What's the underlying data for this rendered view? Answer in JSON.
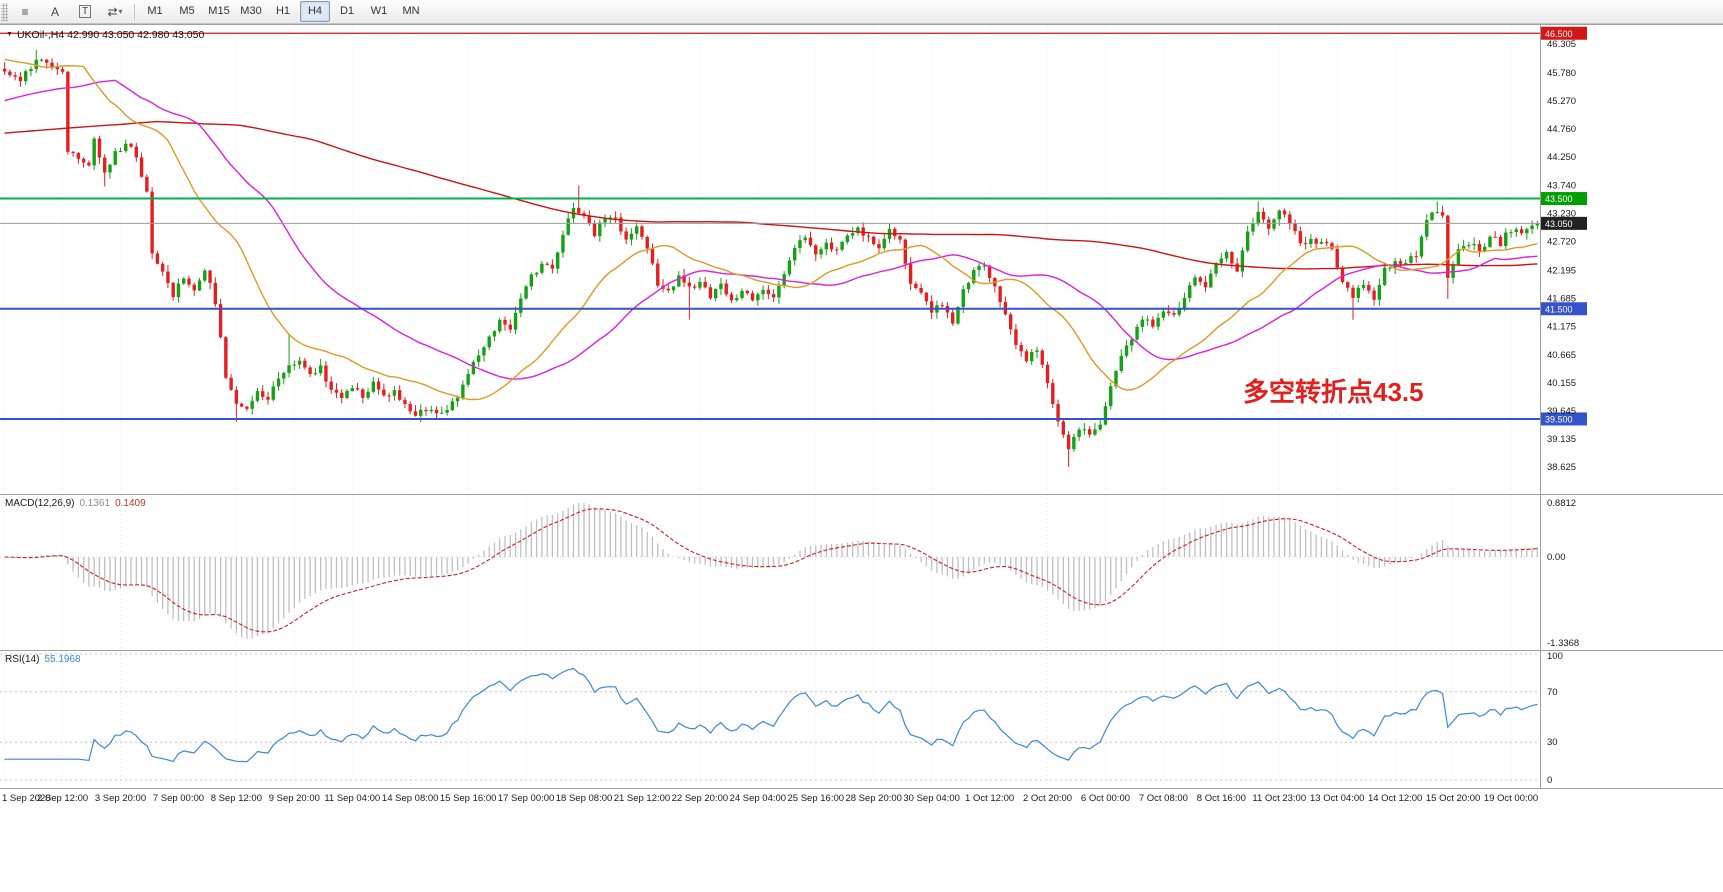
{
  "toolbar": {
    "icons": [
      {
        "name": "indicator-list-icon",
        "glyph": "≡"
      },
      {
        "name": "cursor-tool-icon",
        "glyph": "A"
      },
      {
        "name": "text-tool-icon",
        "glyph": "T",
        "boxed": true
      },
      {
        "name": "cycle-template-icon",
        "glyph": "⇄",
        "dropdown": true
      }
    ],
    "timeframes": [
      {
        "label": "M1",
        "active": false
      },
      {
        "label": "M5",
        "active": false
      },
      {
        "label": "M15",
        "active": false
      },
      {
        "label": "M30",
        "active": false
      },
      {
        "label": "H1",
        "active": false
      },
      {
        "label": "H4",
        "active": true
      },
      {
        "label": "D1",
        "active": false
      },
      {
        "label": "W1",
        "active": false
      },
      {
        "label": "MN",
        "active": false
      }
    ]
  },
  "overlays": {
    "collapse_glyph": "▼",
    "title": "UKOil-,H4  42.990 43.050 42.980 43.050",
    "annotation": "多空转折点43.5"
  },
  "chart_data": {
    "type": "candlestick",
    "symbol": "UKOil-",
    "timeframe": "H4",
    "ohlc_current": {
      "open": "42.990",
      "high": "43.050",
      "low": "42.980",
      "close": "43.050"
    },
    "colors": {
      "up": "#16a016",
      "down": "#e32020",
      "grid": "#e9e9e9",
      "separator": "#a0a0a0",
      "macd_bar": "#bfbfbf",
      "macd_signal": "#d02020",
      "rsi_line": "#3b87d9"
    },
    "y_axis_ticks": [
      "46.305",
      "45.780",
      "45.270",
      "44.760",
      "44.250",
      "43.740",
      "43.230",
      "42.720",
      "42.195",
      "41.685",
      "41.175",
      "40.665",
      "40.155",
      "39.645",
      "39.135",
      "38.625"
    ],
    "x_axis_labels": [
      "1 Sep 2020",
      "2 Sep 12:00",
      "3 Sep 20:00",
      "7 Sep 00:00",
      "8 Sep 12:00",
      "9 Sep 20:00",
      "11 Sep 04:00",
      "14 Sep 08:00",
      "15 Sep 16:00",
      "17 Sep 00:00",
      "18 Sep 08:00",
      "21 Sep 12:00",
      "22 Sep 20:00",
      "24 Sep 04:00",
      "25 Sep 16:00",
      "28 Sep 20:00",
      "30 Sep 04:00",
      "1 Oct 12:00",
      "2 Oct 20:00",
      "6 Oct 00:00",
      "7 Oct 08:00",
      "8 Oct 16:00",
      "11 Oct 23:00",
      "13 Oct 04:00",
      "14 Oct 12:00",
      "15 Oct 20:00",
      "19 Oct 00:00"
    ],
    "levels": [
      {
        "price": 46.5,
        "label": "46.500",
        "color": "#d51616",
        "line_color": "#d51616",
        "width": 1.3,
        "name": "resistance-line-46-5"
      },
      {
        "price": 43.5,
        "label": "43.500",
        "color": "#00a000",
        "line_color": "#00b050",
        "width": 2,
        "name": "pivot-line-43-5"
      },
      {
        "price": 43.05,
        "label": "43.050",
        "color": "#222222",
        "line_color": "#9b9b9b",
        "width": 1,
        "name": "current-price-line"
      },
      {
        "price": 41.5,
        "label": "41.500",
        "color": "#3452cc",
        "line_color": "#3452cc",
        "width": 2,
        "name": "support-line-41-5"
      },
      {
        "price": 39.5,
        "label": "39.500",
        "color": "#3452cc",
        "line_color": "#3452cc",
        "width": 2,
        "name": "support-line-39-5"
      }
    ],
    "candle_count": 292,
    "close_waypoints": [
      [
        0,
        45.85
      ],
      [
        3,
        45.65
      ],
      [
        6,
        46.0
      ],
      [
        9,
        45.9
      ],
      [
        11,
        45.75
      ],
      [
        12,
        44.4
      ],
      [
        14,
        44.25
      ],
      [
        16,
        44.1
      ],
      [
        17,
        44.55
      ],
      [
        19,
        43.95
      ],
      [
        21,
        44.3
      ],
      [
        23,
        44.5
      ],
      [
        25,
        44.3
      ],
      [
        27,
        43.6
      ],
      [
        28,
        42.45
      ],
      [
        30,
        42.2
      ],
      [
        32,
        41.7
      ],
      [
        34,
        42.1
      ],
      [
        36,
        41.85
      ],
      [
        38,
        42.25
      ],
      [
        40,
        41.6
      ],
      [
        42,
        40.3
      ],
      [
        44,
        39.75
      ],
      [
        46,
        39.65
      ],
      [
        48,
        40.0
      ],
      [
        50,
        39.85
      ],
      [
        52,
        40.25
      ],
      [
        54,
        40.45
      ],
      [
        56,
        40.55
      ],
      [
        58,
        40.3
      ],
      [
        60,
        40.45
      ],
      [
        62,
        40.0
      ],
      [
        64,
        39.85
      ],
      [
        66,
        40.1
      ],
      [
        68,
        39.9
      ],
      [
        70,
        40.15
      ],
      [
        72,
        39.9
      ],
      [
        74,
        40.05
      ],
      [
        76,
        39.75
      ],
      [
        78,
        39.55
      ],
      [
        80,
        39.7
      ],
      [
        82,
        39.6
      ],
      [
        84,
        39.65
      ],
      [
        86,
        39.9
      ],
      [
        88,
        40.3
      ],
      [
        90,
        40.65
      ],
      [
        92,
        41.0
      ],
      [
        94,
        41.3
      ],
      [
        96,
        41.15
      ],
      [
        98,
        41.7
      ],
      [
        100,
        42.1
      ],
      [
        102,
        42.3
      ],
      [
        104,
        42.2
      ],
      [
        106,
        42.9
      ],
      [
        108,
        43.3
      ],
      [
        110,
        43.15
      ],
      [
        112,
        42.85
      ],
      [
        114,
        43.2
      ],
      [
        116,
        43.1
      ],
      [
        118,
        42.75
      ],
      [
        120,
        43.05
      ],
      [
        122,
        42.6
      ],
      [
        124,
        41.95
      ],
      [
        126,
        41.8
      ],
      [
        128,
        42.1
      ],
      [
        130,
        41.85
      ],
      [
        132,
        41.95
      ],
      [
        134,
        41.75
      ],
      [
        136,
        41.9
      ],
      [
        138,
        41.65
      ],
      [
        140,
        41.8
      ],
      [
        142,
        41.7
      ],
      [
        144,
        41.85
      ],
      [
        146,
        41.7
      ],
      [
        148,
        42.1
      ],
      [
        150,
        42.65
      ],
      [
        152,
        42.75
      ],
      [
        154,
        42.5
      ],
      [
        156,
        42.65
      ],
      [
        158,
        42.55
      ],
      [
        160,
        42.85
      ],
      [
        162,
        43.0
      ],
      [
        164,
        42.75
      ],
      [
        166,
        42.55
      ],
      [
        168,
        42.9
      ],
      [
        170,
        42.75
      ],
      [
        172,
        41.9
      ],
      [
        174,
        41.75
      ],
      [
        176,
        41.45
      ],
      [
        178,
        41.6
      ],
      [
        180,
        41.2
      ],
      [
        182,
        41.8
      ],
      [
        184,
        42.25
      ],
      [
        186,
        42.3
      ],
      [
        188,
        41.9
      ],
      [
        190,
        41.4
      ],
      [
        192,
        40.85
      ],
      [
        194,
        40.6
      ],
      [
        196,
        40.8
      ],
      [
        198,
        40.1
      ],
      [
        200,
        39.4
      ],
      [
        202,
        38.95
      ],
      [
        204,
        39.35
      ],
      [
        206,
        39.2
      ],
      [
        208,
        39.45
      ],
      [
        210,
        40.1
      ],
      [
        212,
        40.6
      ],
      [
        214,
        41.0
      ],
      [
        216,
        41.3
      ],
      [
        218,
        41.2
      ],
      [
        220,
        41.5
      ],
      [
        222,
        41.35
      ],
      [
        224,
        41.75
      ],
      [
        226,
        42.1
      ],
      [
        228,
        41.9
      ],
      [
        230,
        42.3
      ],
      [
        232,
        42.5
      ],
      [
        234,
        42.2
      ],
      [
        236,
        42.9
      ],
      [
        238,
        43.2
      ],
      [
        240,
        43.0
      ],
      [
        242,
        43.25
      ],
      [
        244,
        43.1
      ],
      [
        246,
        42.65
      ],
      [
        248,
        42.75
      ],
      [
        250,
        42.7
      ],
      [
        252,
        42.6
      ],
      [
        254,
        41.95
      ],
      [
        256,
        41.75
      ],
      [
        258,
        41.9
      ],
      [
        260,
        41.7
      ],
      [
        262,
        42.2
      ],
      [
        264,
        42.4
      ],
      [
        266,
        42.3
      ],
      [
        268,
        42.5
      ],
      [
        270,
        43.1
      ],
      [
        272,
        43.3
      ],
      [
        273,
        43.2
      ],
      [
        274,
        42.1
      ],
      [
        276,
        42.55
      ],
      [
        278,
        42.7
      ],
      [
        280,
        42.55
      ],
      [
        282,
        42.8
      ],
      [
        284,
        42.7
      ],
      [
        286,
        42.95
      ],
      [
        288,
        42.85
      ],
      [
        290,
        43.0
      ],
      [
        291,
        43.05
      ]
    ],
    "wick_spikes": [
      [
        6,
        "h",
        46.2
      ],
      [
        19,
        "l",
        43.72
      ],
      [
        44,
        "l",
        39.45
      ],
      [
        54,
        "h",
        41.05
      ],
      [
        109,
        "h",
        43.74
      ],
      [
        130,
        "l",
        41.3
      ],
      [
        202,
        "l",
        38.63
      ],
      [
        238,
        "h",
        43.45
      ],
      [
        256,
        "l",
        41.3
      ],
      [
        272,
        "h",
        43.45
      ],
      [
        274,
        "l",
        41.68
      ]
    ],
    "moving_averages": [
      {
        "name": "ma-slow-line",
        "color": "#cc1414",
        "k": 0.007,
        "seed": 44.68,
        "lag": 18,
        "width": 1.4
      },
      {
        "name": "ma-medium-line",
        "color": "#e01ee0",
        "k": 0.05,
        "seed": 45.25,
        "lag": 10,
        "width": 1.4
      },
      {
        "name": "ma-fast-line",
        "color": "#dd9b22",
        "k": 0.09,
        "seed": 46.05,
        "lag": 4,
        "width": 1.4
      }
    ],
    "indicators": {
      "macd": {
        "name": "MACD(12,26,9)",
        "value_main": "0.1361",
        "value_signal": "0.1409",
        "fast": 12,
        "slow": 26,
        "signal": 9,
        "axis_labels": [
          "0.8812",
          "0.00",
          "-1.3368"
        ]
      },
      "rsi": {
        "name": "RSI(14)",
        "value": "55.1968",
        "period": 14,
        "axis_labels": [
          {
            "label": "100",
            "v": 100
          },
          {
            "label": "70",
            "v": 70
          },
          {
            "label": "30",
            "v": 30
          },
          {
            "label": "0",
            "v": 0
          }
        ],
        "level_lines": [
          100,
          70,
          30,
          0
        ]
      }
    }
  }
}
